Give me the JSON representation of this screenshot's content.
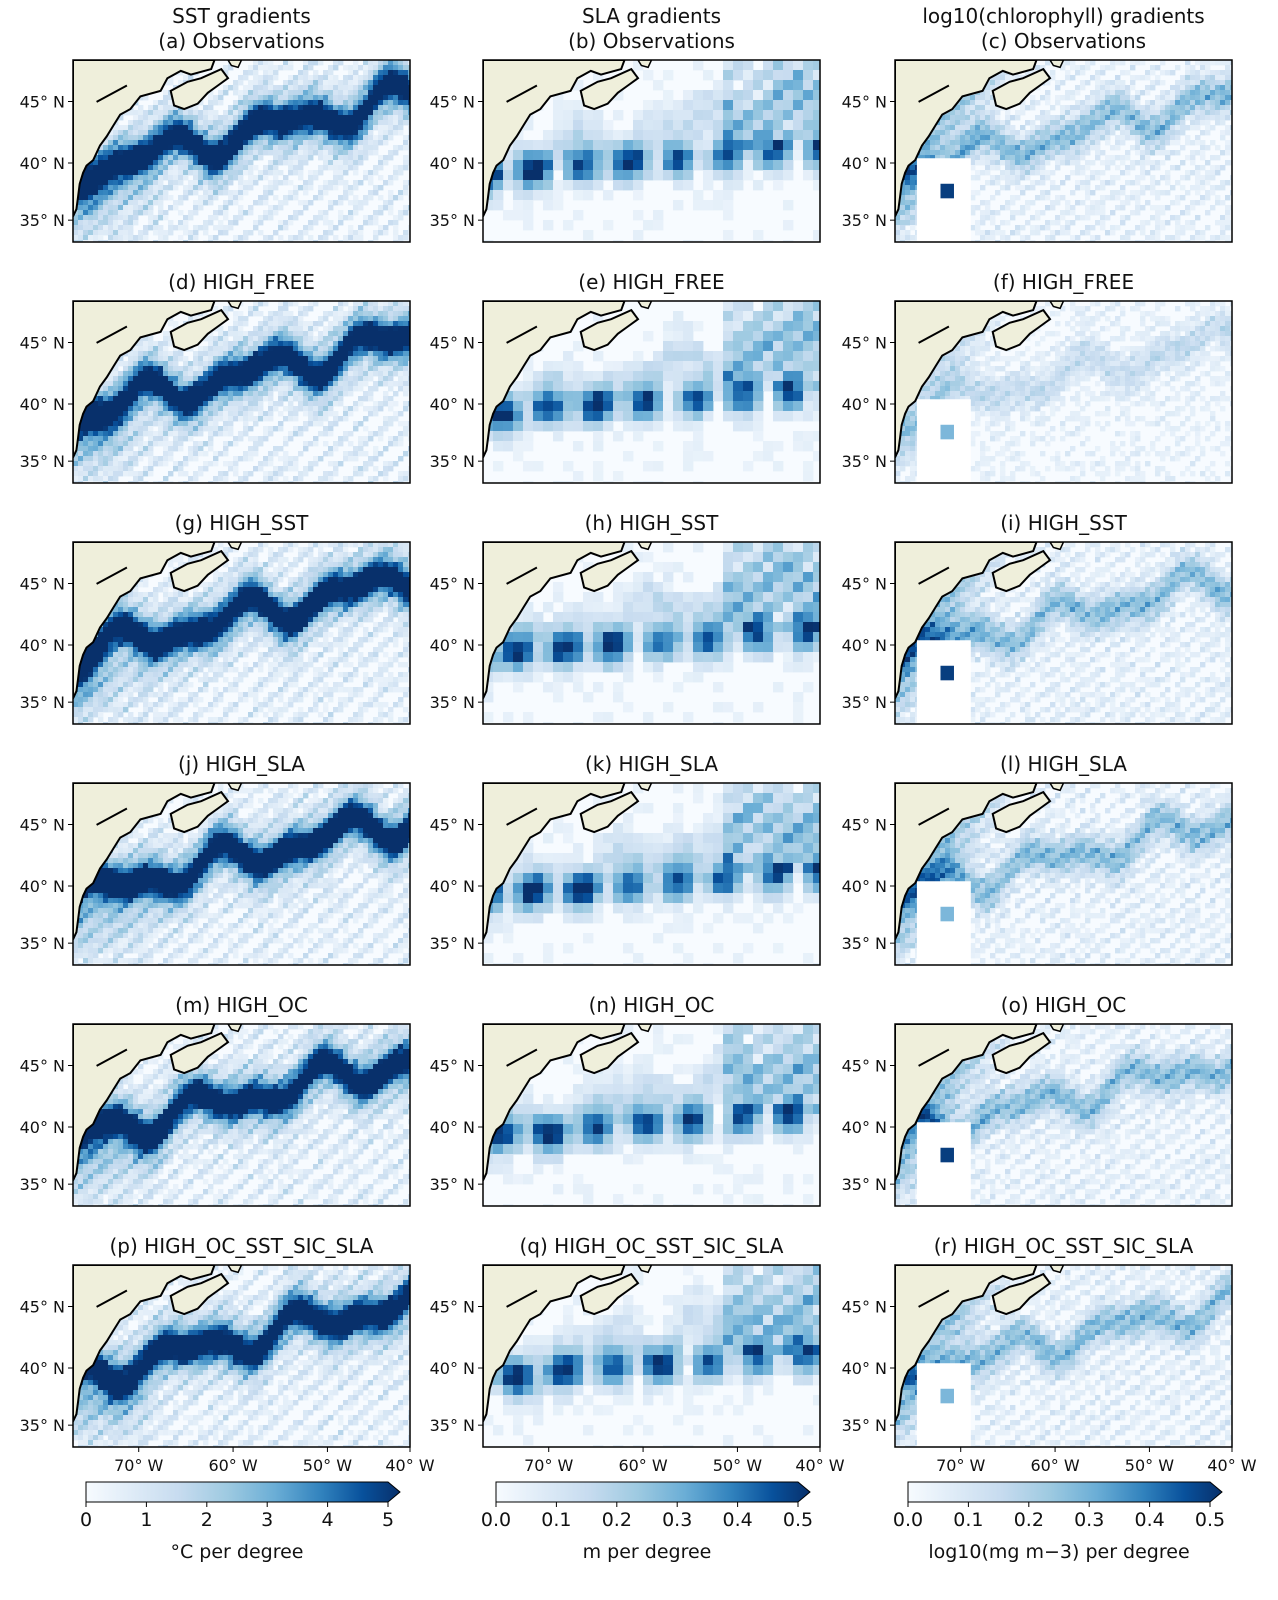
{
  "columns": [
    {
      "header_title": "SST gradients",
      "cbar_ticks": [
        "0",
        "1",
        "2",
        "3",
        "4",
        "5"
      ],
      "cbar_label": "°C per degree"
    },
    {
      "header_title": "SLA gradients",
      "cbar_ticks": [
        "0.0",
        "0.1",
        "0.2",
        "0.3",
        "0.4",
        "0.5"
      ],
      "cbar_label": "m per degree"
    },
    {
      "header_title": "log10(chlorophyll) gradients",
      "cbar_ticks": [
        "0.0",
        "0.1",
        "0.2",
        "0.3",
        "0.4",
        "0.5"
      ],
      "cbar_label": "log10(mg m−3) per degree"
    }
  ],
  "panel_titles": [
    [
      "(a) Observations",
      "(b) Observations",
      "(c) Observations"
    ],
    [
      "(d) HIGH_FREE",
      "(e) HIGH_FREE",
      "(f) HIGH_FREE"
    ],
    [
      "(g) HIGH_SST",
      "(h) HIGH_SST",
      "(i) HIGH_SST"
    ],
    [
      "(j) HIGH_SLA",
      "(k) HIGH_SLA",
      "(l) HIGH_SLA"
    ],
    [
      "(m) HIGH_OC",
      "(n) HIGH_OC",
      "(o) HIGH_OC"
    ],
    [
      "(p) HIGH_OC_SST_SIC_SLA",
      "(q) HIGH_OC_SST_SIC_SLA",
      "(r) HIGH_OC_SST_SIC_SLA"
    ]
  ],
  "lat_ticks": [
    "45° N",
    "40° N",
    "35° N"
  ],
  "lon_ticks": [
    "70° W",
    "60° W",
    "50° W",
    "40° W"
  ],
  "colormap": {
    "name": "Blues",
    "low": "#f7fbff",
    "high": "#08306b",
    "land": "#efefdb",
    "coast": "#000000",
    "extend": "max"
  }
}
